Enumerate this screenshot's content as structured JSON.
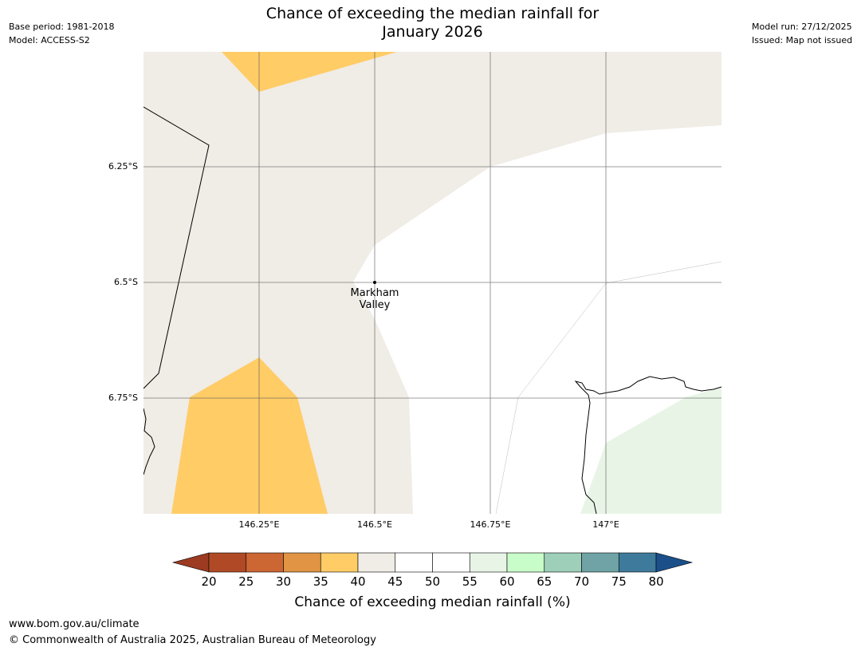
{
  "header": {
    "title_line1": "Chance of exceeding the median rainfall for",
    "title_line2": "January 2026",
    "base_period": "Base period: 1981-2018",
    "model": "Model: ACCESS-S2",
    "model_run": "Model run: 27/12/2025",
    "issued": "Issued: Map not issued"
  },
  "map": {
    "lat_labels": [
      "6.25°S",
      "6.5°S",
      "6.75°S"
    ],
    "lon_labels": [
      "146.25°E",
      "146.5°E",
      "146.75°E",
      "147°E"
    ],
    "place": {
      "line1": "Markham",
      "line2": "Valley",
      "lat": -6.5,
      "lon": 146.5
    },
    "colors": {
      "35-40": "#ffcc66",
      "40-45": "#f0ece6",
      "45-55": "#ffffff",
      "55-60": "#e8f5e6",
      "land_border": "#000000",
      "grid": "#555555"
    }
  },
  "colorbar": {
    "ticks": [
      "20",
      "25",
      "30",
      "35",
      "40",
      "45",
      "50",
      "55",
      "60",
      "65",
      "70",
      "75",
      "80"
    ],
    "colors": [
      "#9c3a22",
      "#b04a26",
      "#cc6633",
      "#e09444",
      "#ffcc66",
      "#f0ece6",
      "#ffffff",
      "#ffffff",
      "#e8f5e6",
      "#c8fcc8",
      "#9ecfb8",
      "#6fa3a5",
      "#3e7a9b",
      "#1a4f8a"
    ],
    "title": "Chance of exceeding median rainfall (%)"
  },
  "footer": {
    "url": "www.bom.gov.au/climate",
    "copyright": "© Commonwealth of Australia 2025, Australian Bureau of Meteorology"
  }
}
